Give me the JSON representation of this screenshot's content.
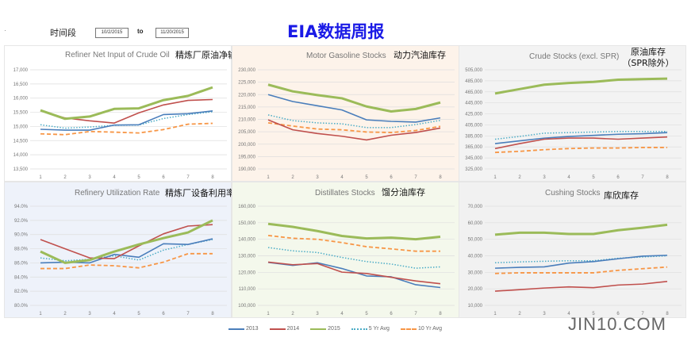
{
  "header": {
    "period_label": "时间段",
    "start_date": "10/2/2015",
    "to_label": "to",
    "end_date": "11/20/2015",
    "title": "EIA数据周报"
  },
  "legend": {
    "items": [
      {
        "label": "2013",
        "color": "#4a7ebb",
        "style": "solid"
      },
      {
        "label": "2014",
        "color": "#c0504d",
        "style": "solid"
      },
      {
        "label": "2015",
        "color": "#9bbb59",
        "style": "thick"
      },
      {
        "label": "5 Yr Avg",
        "color": "#4bacc6",
        "style": "dotted"
      },
      {
        "label": "10 Yr Avg",
        "color": "#f79646",
        "style": "dashed"
      }
    ]
  },
  "watermark": "JIN10.COM",
  "chart_data": [
    {
      "type": "line",
      "title": "Refiner Net Input of Crude Oil",
      "title_zh": "精炼厂原油净输入",
      "x": [
        1,
        2,
        3,
        4,
        5,
        6,
        7,
        8
      ],
      "ylim": [
        13500,
        17000
      ],
      "yticks": [
        "13,500",
        "14,000",
        "14,500",
        "15,000",
        "15,500",
        "16,000",
        "16,500",
        "17,000"
      ],
      "background": "#ffffff",
      "series": [
        {
          "name": "2013",
          "values": [
            14900,
            14870,
            14870,
            15050,
            15060,
            15420,
            15450,
            15550
          ]
        },
        {
          "name": "2014",
          "values": [
            15550,
            15300,
            15200,
            15120,
            15480,
            15760,
            15920,
            15950
          ]
        },
        {
          "name": "2015",
          "values": [
            15570,
            15270,
            15350,
            15620,
            15640,
            15930,
            16080,
            16380
          ]
        },
        {
          "name": "5 Yr Avg",
          "values": [
            15060,
            14940,
            14980,
            15040,
            15050,
            15280,
            15420,
            15520
          ]
        },
        {
          "name": "10 Yr Avg",
          "values": [
            14740,
            14710,
            14820,
            14800,
            14770,
            14890,
            15080,
            15110
          ]
        }
      ]
    },
    {
      "type": "line",
      "title": "Motor Gasoline Stocks",
      "title_zh": "动力汽油库存",
      "x": [
        1,
        2,
        3,
        4,
        5,
        6,
        7,
        8
      ],
      "ylim": [
        190000,
        230000
      ],
      "yticks": [
        "190,000",
        "195,000",
        "200,000",
        "205,000",
        "210,000",
        "215,000",
        "220,000",
        "225,000",
        "230,000"
      ],
      "background": "#fdf3ea",
      "series": [
        {
          "name": "2013",
          "values": [
            220000,
            217200,
            215500,
            213800,
            209800,
            209200,
            208900,
            210600
          ]
        },
        {
          "name": "2014",
          "values": [
            209800,
            205800,
            204300,
            203200,
            201700,
            203600,
            204700,
            206500
          ]
        },
        {
          "name": "2015",
          "values": [
            224000,
            221300,
            219800,
            218500,
            215200,
            213200,
            214200,
            216800
          ]
        },
        {
          "name": "5 Yr Avg",
          "values": [
            211800,
            209500,
            208600,
            208200,
            206700,
            206700,
            207900,
            209600
          ]
        },
        {
          "name": "10 Yr Avg",
          "values": [
            208600,
            207300,
            206100,
            205800,
            204900,
            204700,
            205500,
            207200
          ]
        }
      ]
    },
    {
      "type": "line",
      "title": "Crude Stocks (excl. SPR)",
      "title_zh": "原油库存（SPR除外）",
      "x": [
        1,
        2,
        3,
        4,
        5,
        6,
        7,
        8
      ],
      "ylim": [
        325000,
        505000
      ],
      "yticks": [
        "325,000",
        "345,000",
        "365,000",
        "385,000",
        "405,000",
        "425,000",
        "445,000",
        "465,000",
        "485,000",
        "505,000"
      ],
      "background": "#f3f3f3",
      "series": [
        {
          "name": "2013",
          "values": [
            371000,
            376000,
            381000,
            384000,
            386000,
            388000,
            389000,
            391000
          ]
        },
        {
          "name": "2014",
          "values": [
            362000,
            371000,
            379000,
            381000,
            381000,
            379000,
            381000,
            383000
          ]
        },
        {
          "name": "2015",
          "values": [
            462000,
            470000,
            478000,
            481000,
            483000,
            487000,
            488000,
            489000
          ]
        },
        {
          "name": "5 Yr Avg",
          "values": [
            379000,
            384000,
            390000,
            391000,
            392000,
            393000,
            393000,
            393000
          ]
        },
        {
          "name": "10 Yr Avg",
          "values": [
            355000,
            357000,
            360000,
            362000,
            363000,
            363000,
            364000,
            364000
          ]
        }
      ]
    },
    {
      "type": "line",
      "title": "Refinery Utilization Rate",
      "title_zh": "精炼厂设备利用率",
      "x": [
        1,
        2,
        3,
        4,
        5,
        6,
        7,
        8
      ],
      "ylim": [
        80,
        94
      ],
      "yticks": [
        "80.0%",
        "82.0%",
        "84.0%",
        "86.0%",
        "88.0%",
        "90.0%",
        "92.0%",
        "94.0%"
      ],
      "background": "#eef2fa",
      "series": [
        {
          "name": "2013",
          "values": [
            86.0,
            86.1,
            86.0,
            87.2,
            86.8,
            88.7,
            88.6,
            89.4
          ]
        },
        {
          "name": "2014",
          "values": [
            89.3,
            88.0,
            86.7,
            86.6,
            88.4,
            90.1,
            91.2,
            91.4
          ]
        },
        {
          "name": "2015",
          "values": [
            87.6,
            86.0,
            86.4,
            87.6,
            88.6,
            89.5,
            90.3,
            92.0
          ]
        },
        {
          "name": "5 Yr Avg",
          "values": [
            86.7,
            86.3,
            86.5,
            87.0,
            86.4,
            87.8,
            88.6,
            89.3
          ]
        },
        {
          "name": "10 Yr Avg",
          "values": [
            85.2,
            85.2,
            85.7,
            85.6,
            85.3,
            86.1,
            87.3,
            87.3
          ]
        }
      ]
    },
    {
      "type": "line",
      "title": "Distillates Stocks",
      "title_zh": "馏分油库存",
      "x": [
        1,
        2,
        3,
        4,
        5,
        6,
        7,
        8
      ],
      "ylim": [
        100000,
        160000
      ],
      "yticks": [
        "100,000",
        "110,000",
        "120,000",
        "130,000",
        "140,000",
        "150,000",
        "160,000"
      ],
      "background": "#f4f8ec",
      "series": [
        {
          "name": "2013",
          "values": [
            126000,
            124200,
            125800,
            122300,
            117800,
            117300,
            112500,
            110800
          ]
        },
        {
          "name": "2014",
          "values": [
            126200,
            124600,
            125300,
            120100,
            119300,
            117000,
            114800,
            113100
          ]
        },
        {
          "name": "2015",
          "values": [
            149300,
            147500,
            145000,
            142000,
            140500,
            141000,
            140000,
            141500
          ]
        },
        {
          "name": "5 Yr Avg",
          "values": [
            135000,
            133000,
            132000,
            129000,
            126500,
            125000,
            122500,
            123300
          ]
        },
        {
          "name": "10 Yr Avg",
          "values": [
            142300,
            140600,
            140000,
            138000,
            135500,
            134200,
            132800,
            132800
          ]
        }
      ]
    },
    {
      "type": "line",
      "title": "Cushing Stocks",
      "title_zh": "库欣库存",
      "x": [
        1,
        2,
        3,
        4,
        5,
        6,
        7,
        8
      ],
      "ylim": [
        10000,
        70000
      ],
      "yticks": [
        "10,000",
        "20,000",
        "30,000",
        "40,000",
        "50,000",
        "60,000",
        "70,000"
      ],
      "background": "#f1f1f1",
      "series": [
        {
          "name": "2013",
          "values": [
            32500,
            33000,
            33300,
            35600,
            36500,
            38200,
            39800,
            40300
          ]
        },
        {
          "name": "2014",
          "values": [
            18600,
            19500,
            20500,
            21200,
            20700,
            22300,
            22900,
            24500
          ]
        },
        {
          "name": "2015",
          "values": [
            52800,
            54000,
            54000,
            53200,
            53200,
            55500,
            57000,
            58800
          ]
        },
        {
          "name": "5 Yr Avg",
          "values": [
            35800,
            36300,
            36700,
            37000,
            37000,
            38500,
            39300,
            40000
          ]
        },
        {
          "name": "10 Yr Avg",
          "values": [
            29300,
            29700,
            29700,
            29700,
            29700,
            31200,
            32200,
            33200
          ]
        }
      ]
    }
  ]
}
